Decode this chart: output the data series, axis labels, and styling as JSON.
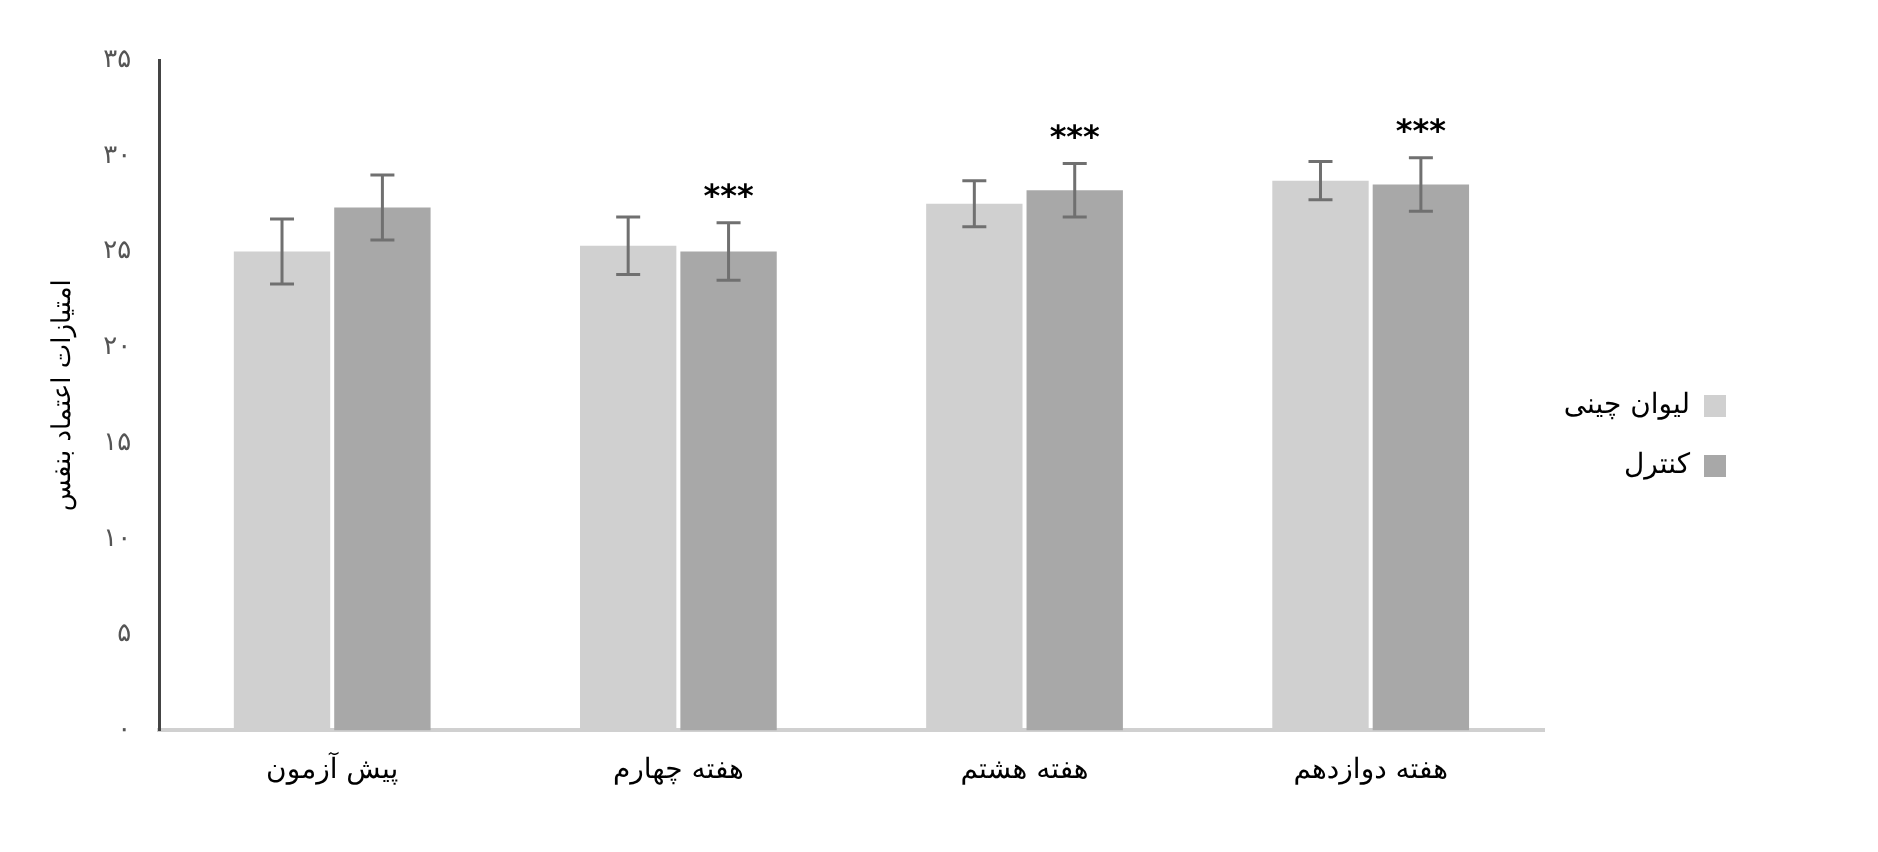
{
  "chart_data": {
    "type": "bar",
    "ylabel": "امتیازات اعتماد بنفس",
    "categories": [
      "پیش آزمون",
      "هفته چهارم",
      "هفته هشتم",
      "هفته دوازدهم"
    ],
    "series": [
      {
        "name": "لیوان چینی",
        "color": "#d0d0d0",
        "values": [
          25.0,
          25.3,
          27.5,
          28.7
        ],
        "errors": [
          1.7,
          1.5,
          1.2,
          1.0
        ]
      },
      {
        "name": "کنترل",
        "color": "#a8a8a8",
        "values": [
          27.3,
          25.0,
          28.2,
          28.5
        ],
        "errors": [
          1.7,
          1.5,
          1.4,
          1.4
        ]
      }
    ],
    "ylim": [
      0,
      35
    ],
    "yticks": [
      {
        "value": 0,
        "label": "۰"
      },
      {
        "value": 5,
        "label": "۵"
      },
      {
        "value": 10,
        "label": "۱۰"
      },
      {
        "value": 15,
        "label": "۱۵"
      },
      {
        "value": 20,
        "label": "۲۰"
      },
      {
        "value": 25,
        "label": "۲۵"
      },
      {
        "value": 30,
        "label": "۳۰"
      },
      {
        "value": 35,
        "label": "۳۵"
      }
    ],
    "annotations": [
      "***",
      "***",
      "***"
    ],
    "grid": false,
    "legend": "right"
  }
}
